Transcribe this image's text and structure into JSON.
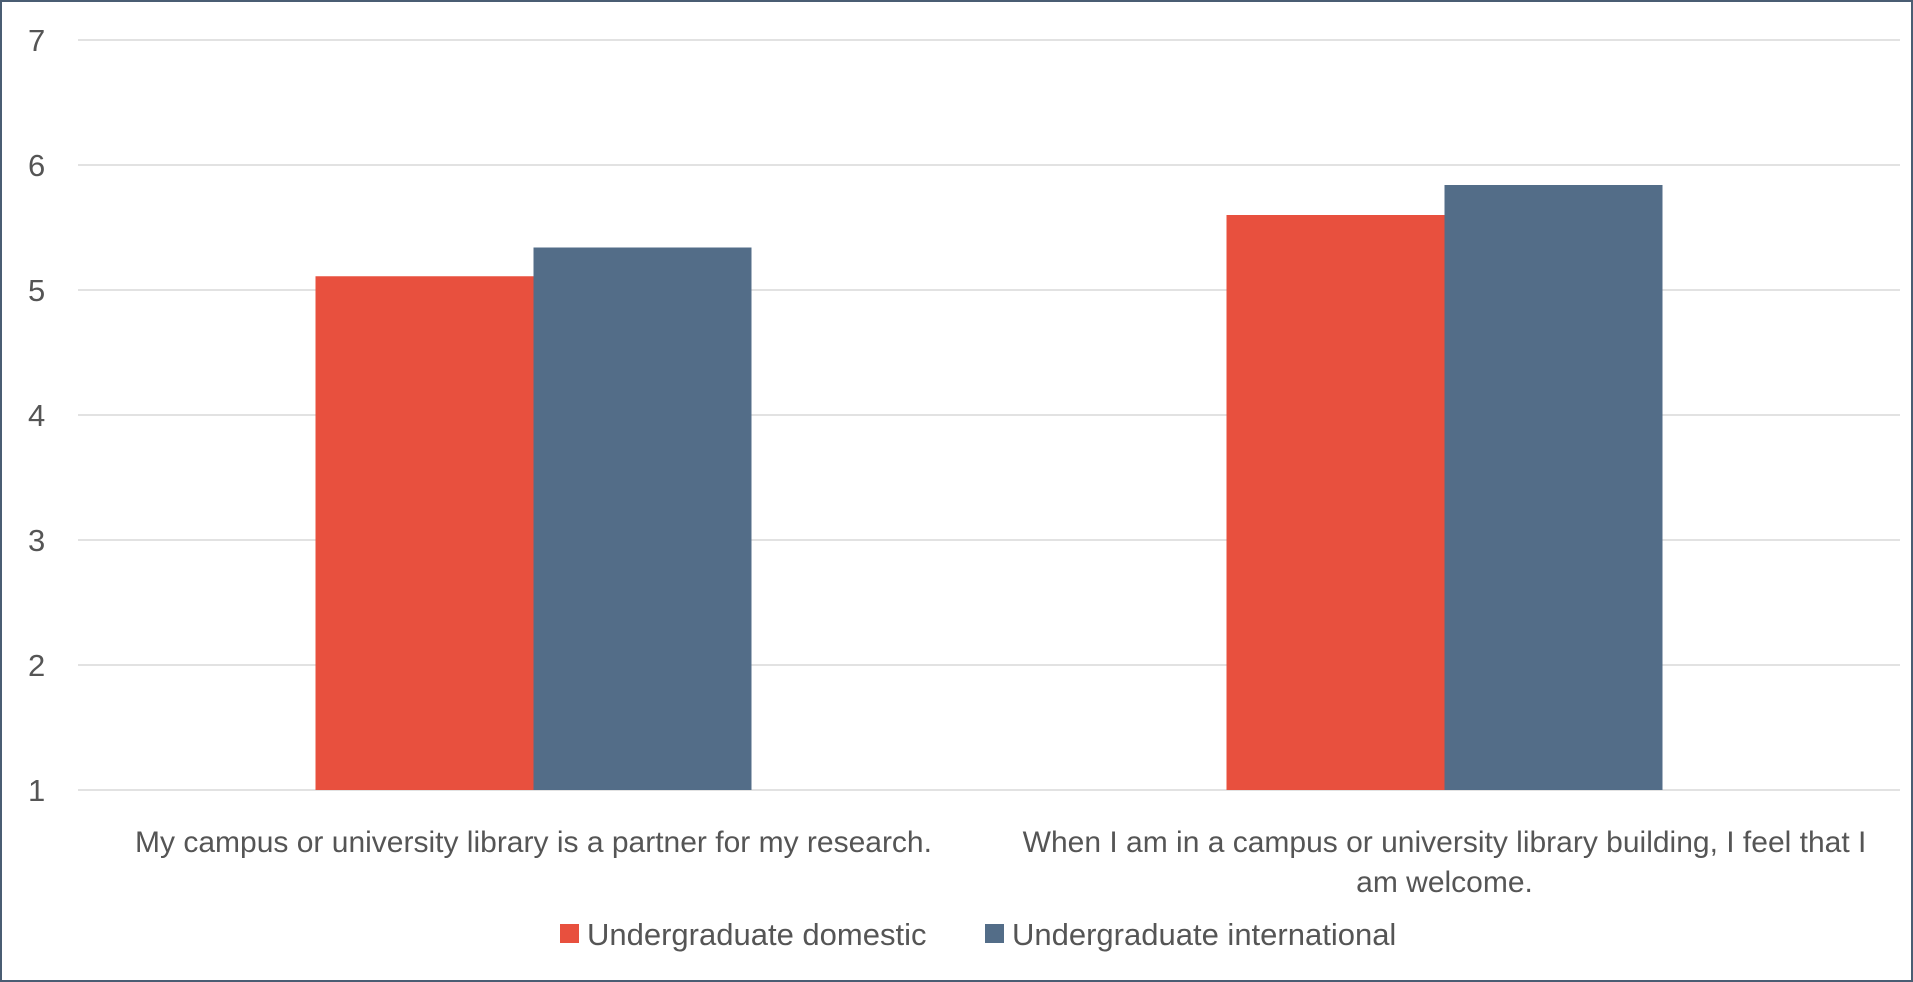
{
  "chart_data": {
    "type": "bar",
    "title": "",
    "xlabel": "",
    "ylabel": "",
    "ylim": [
      1,
      7
    ],
    "yticks": [
      1,
      2,
      3,
      4,
      5,
      6,
      7
    ],
    "grid": true,
    "legend_position": "bottom",
    "categories": [
      [
        "My campus or university library is a partner for my research."
      ],
      [
        "When I am in a campus or university library building, I feel that I",
        "am welcome."
      ]
    ],
    "series": [
      {
        "name": "Undergraduate domestic",
        "color": "#e8503e",
        "values": [
          5.11,
          5.6
        ]
      },
      {
        "name": "Undergraduate international",
        "color": "#536d88",
        "values": [
          5.34,
          5.84
        ]
      }
    ]
  }
}
